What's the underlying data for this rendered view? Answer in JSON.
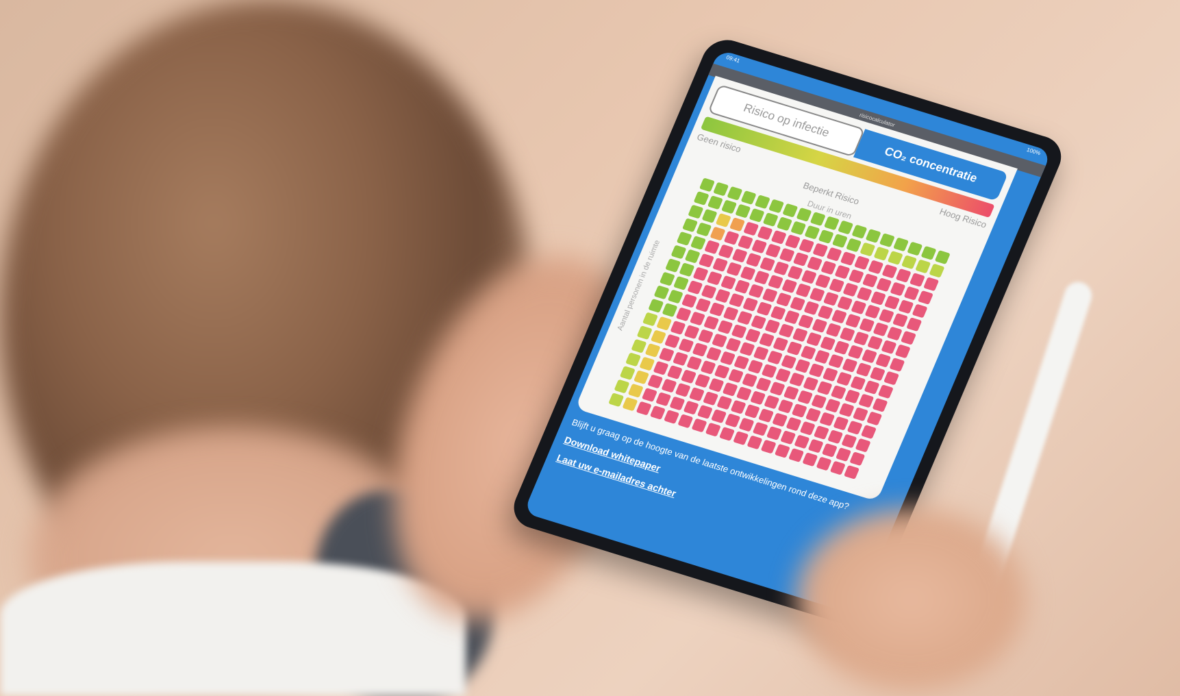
{
  "status_bar": {
    "time": "09:41",
    "battery": "100%"
  },
  "url": "risicocalculator",
  "tabs": [
    {
      "label": "Risico op infectie",
      "active": false
    },
    {
      "label": "CO₂ concentratie",
      "active": true
    }
  ],
  "risk_levels": [
    {
      "label": "Geen risico",
      "color": "#8cc63f"
    },
    {
      "label": "Beperkt Risico",
      "color": "#e9c94a"
    },
    {
      "label": "Hoog Risico",
      "color": "#e8587a"
    }
  ],
  "grid": {
    "x_label": "Duur in uren",
    "y_label": "Aantal personen in de ruimte",
    "rows": 17,
    "cols": 18
  },
  "footer": {
    "prompt": "Blijft u graag op de hoogte van de laatste ontwikkelingen rond deze app?",
    "links": [
      "Download whitepaper",
      "Laat uw e-mailadres achter"
    ]
  },
  "colors": {
    "screen_blue": "#2e86d8",
    "green": "#8cc63f",
    "yellow_green": "#bcd548",
    "yellow": "#e9c94a",
    "orange": "#f0a050",
    "pink": "#e8587a"
  }
}
